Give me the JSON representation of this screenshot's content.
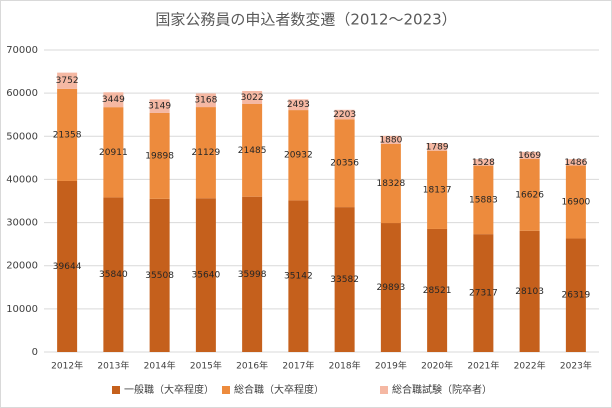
{
  "chart_data": {
    "type": "stacked_bar",
    "title": "国家公務員の申込者数変遷（2012〜2023）",
    "categories": [
      "2012年",
      "2013年",
      "2014年",
      "2015年",
      "2016年",
      "2017年",
      "2018年",
      "2019年",
      "2020年",
      "2021年",
      "2022年",
      "2023年"
    ],
    "series": [
      {
        "name": "一般職（大卒程度）",
        "color": "#c5601c",
        "values": [
          39644,
          35840,
          35508,
          35640,
          35998,
          35142,
          33582,
          29893,
          28521,
          27317,
          28103,
          26319
        ]
      },
      {
        "name": "総合職（大卒程度）",
        "color": "#ed8b3d",
        "values": [
          21358,
          20911,
          19898,
          21129,
          21485,
          20932,
          20356,
          18328,
          18137,
          15883,
          16626,
          16900
        ]
      },
      {
        "name": "総合職試験（院卒者）",
        "color": "#f5b8a3",
        "values": [
          3752,
          3449,
          3149,
          3168,
          3022,
          2493,
          2203,
          1880,
          1789,
          1528,
          1669,
          1486
        ]
      }
    ],
    "ylim": [
      0,
      70000
    ],
    "yticks": [
      0,
      10000,
      20000,
      30000,
      40000,
      50000,
      60000,
      70000
    ],
    "grid": true,
    "legend": "bottom"
  }
}
